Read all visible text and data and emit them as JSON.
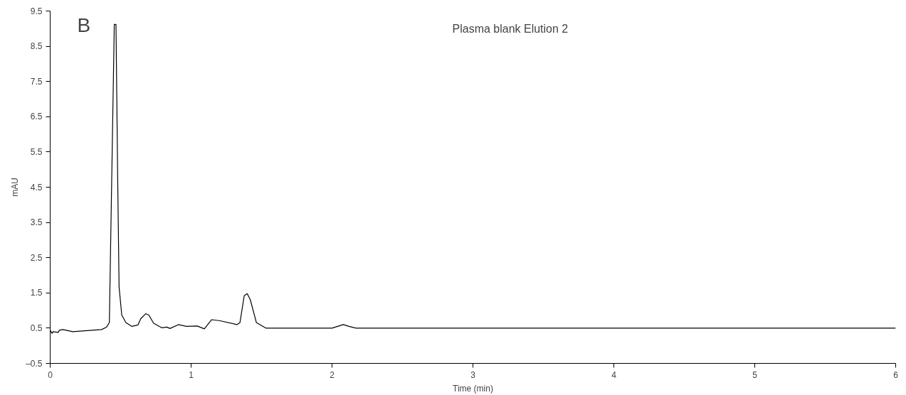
{
  "chart_data": {
    "type": "line",
    "title": "B",
    "annotations": [
      "Plasma blank Elution 2"
    ],
    "xlabel": "Time (min)",
    "ylabel": "mAU",
    "x": [
      0,
      0.014,
      0.02,
      0.057,
      0.065,
      0.09,
      0.16,
      0.365,
      0.4,
      0.42,
      0.434,
      0.455,
      0.467,
      0.479,
      0.489,
      0.508,
      0.537,
      0.58,
      0.623,
      0.643,
      0.678,
      0.7,
      0.734,
      0.794,
      0.828,
      0.85,
      0.91,
      0.966,
      1.043,
      1.094,
      1.146,
      1.206,
      1.326,
      1.347,
      1.377,
      1.398,
      1.42,
      1.463,
      1.532,
      2.0,
      2.04,
      2.08,
      2.12,
      2.17,
      6.0
    ],
    "series": [
      {
        "color": "#000000",
        "values": [
          0.44,
          0.35,
          0.4,
          0.38,
          0.44,
          0.46,
          0.4,
          0.46,
          0.53,
          0.66,
          4.06,
          9.12,
          9.12,
          4.78,
          1.67,
          0.87,
          0.66,
          0.55,
          0.59,
          0.77,
          0.91,
          0.87,
          0.64,
          0.51,
          0.53,
          0.49,
          0.6,
          0.55,
          0.56,
          0.48,
          0.74,
          0.71,
          0.6,
          0.66,
          1.42,
          1.48,
          1.31,
          0.66,
          0.5,
          0.5,
          0.55,
          0.6,
          0.55,
          0.5,
          0.5
        ]
      }
    ],
    "xlim": [
      0,
      6
    ],
    "xticks": [
      0,
      1,
      2,
      3,
      4,
      5,
      6
    ],
    "ylim": [
      -0.5,
      9.5
    ],
    "yticks": [
      {
        "value": -0.5,
        "label": "–0.5"
      },
      0.5,
      1.5,
      2.5,
      3.5,
      4.5,
      5.5,
      6.5,
      7.5,
      8.5,
      9.5
    ],
    "grid": false,
    "marker": "none",
    "line_style": "solid"
  }
}
